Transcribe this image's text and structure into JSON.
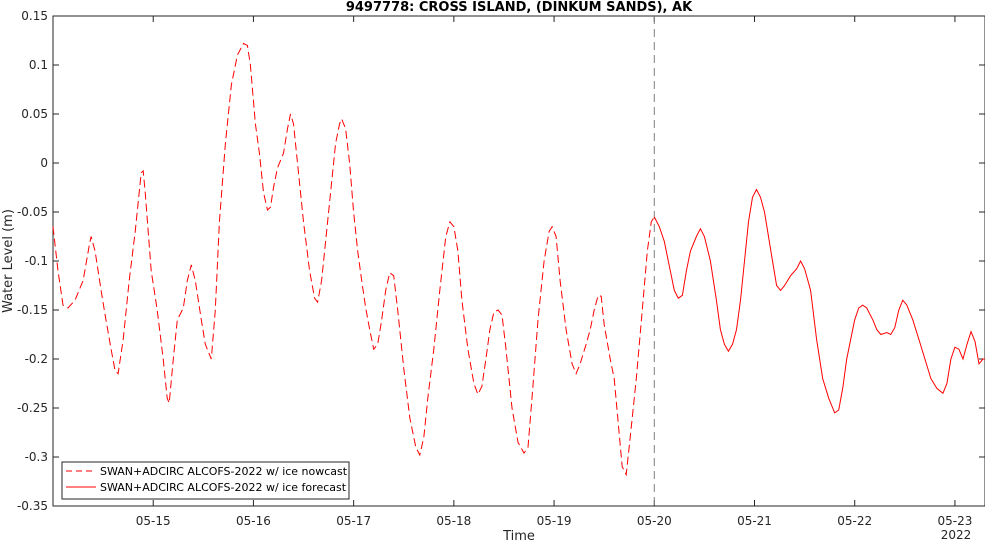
{
  "chart_data": {
    "type": "line",
    "title": "9497778: CROSS ISLAND, (DINKUM SANDS), AK",
    "xlabel": "Time",
    "ylabel": "Water Level (m)",
    "x_units": "days (May 2022)",
    "xlim": [
      14.0,
      23.3
    ],
    "ylim": [
      -0.35,
      0.15
    ],
    "yticks": [
      0.15,
      0.1,
      0.05,
      0,
      -0.05,
      -0.1,
      -0.15,
      -0.2,
      -0.25,
      -0.3,
      -0.35
    ],
    "ytick_labels": [
      "0.15",
      "0.1",
      "0.05",
      "0",
      "-0.05",
      "-0.1",
      "-0.15",
      "-0.2",
      "-0.25",
      "-0.3",
      "-0.35"
    ],
    "xticks": [
      15,
      16,
      17,
      18,
      19,
      20,
      21,
      22,
      23
    ],
    "xtick_labels": [
      "05-15",
      "05-16",
      "05-17",
      "05-18",
      "05-19",
      "05-20",
      "05-21",
      "05-22",
      "05-23"
    ],
    "x_year_label": "2022",
    "divider_x": 20.0,
    "grid": false,
    "legend_position": "bottom-left",
    "colors": {
      "series": "#ff0000",
      "divider": "#808080",
      "axis": "#262626"
    },
    "series": [
      {
        "name": "SWAN+ADCIRC ALCOFS-2022 w/ ice nowcast",
        "style": "dashed",
        "points": [
          [
            14.0,
            -0.065
          ],
          [
            14.05,
            -0.11
          ],
          [
            14.1,
            -0.145
          ],
          [
            14.15,
            -0.148
          ],
          [
            14.22,
            -0.14
          ],
          [
            14.3,
            -0.12
          ],
          [
            14.36,
            -0.085
          ],
          [
            14.38,
            -0.075
          ],
          [
            14.42,
            -0.09
          ],
          [
            14.48,
            -0.13
          ],
          [
            14.52,
            -0.155
          ],
          [
            14.58,
            -0.19
          ],
          [
            14.62,
            -0.212
          ],
          [
            14.65,
            -0.215
          ],
          [
            14.7,
            -0.18
          ],
          [
            14.76,
            -0.12
          ],
          [
            14.82,
            -0.07
          ],
          [
            14.86,
            -0.03
          ],
          [
            14.88,
            -0.01
          ],
          [
            14.9,
            -0.008
          ],
          [
            14.92,
            -0.03
          ],
          [
            14.98,
            -0.11
          ],
          [
            15.04,
            -0.15
          ],
          [
            15.1,
            -0.2
          ],
          [
            15.14,
            -0.24
          ],
          [
            15.16,
            -0.245
          ],
          [
            15.2,
            -0.2
          ],
          [
            15.24,
            -0.16
          ],
          [
            15.3,
            -0.148
          ],
          [
            15.34,
            -0.12
          ],
          [
            15.38,
            -0.104
          ],
          [
            15.42,
            -0.12
          ],
          [
            15.48,
            -0.16
          ],
          [
            15.52,
            -0.185
          ],
          [
            15.56,
            -0.195
          ],
          [
            15.58,
            -0.2
          ],
          [
            15.62,
            -0.15
          ],
          [
            15.66,
            -0.06
          ],
          [
            15.72,
            0.02
          ],
          [
            15.78,
            0.08
          ],
          [
            15.84,
            0.11
          ],
          [
            15.9,
            0.122
          ],
          [
            15.94,
            0.12
          ],
          [
            15.97,
            0.1
          ],
          [
            16.02,
            0.04
          ],
          [
            16.06,
            0.01
          ],
          [
            16.1,
            -0.03
          ],
          [
            16.14,
            -0.048
          ],
          [
            16.17,
            -0.045
          ],
          [
            16.2,
            -0.025
          ],
          [
            16.24,
            -0.005
          ],
          [
            16.3,
            0.01
          ],
          [
            16.34,
            0.035
          ],
          [
            16.37,
            0.05
          ],
          [
            16.4,
            0.04
          ],
          [
            16.44,
            0.0
          ],
          [
            16.5,
            -0.06
          ],
          [
            16.56,
            -0.11
          ],
          [
            16.61,
            -0.138
          ],
          [
            16.64,
            -0.142
          ],
          [
            16.68,
            -0.12
          ],
          [
            16.72,
            -0.08
          ],
          [
            16.78,
            -0.02
          ],
          [
            16.82,
            0.02
          ],
          [
            16.86,
            0.04
          ],
          [
            16.88,
            0.045
          ],
          [
            16.92,
            0.035
          ],
          [
            16.96,
            0.0
          ],
          [
            17.0,
            -0.05
          ],
          [
            17.04,
            -0.09
          ],
          [
            17.08,
            -0.12
          ],
          [
            17.12,
            -0.148
          ],
          [
            17.16,
            -0.17
          ],
          [
            17.2,
            -0.19
          ],
          [
            17.24,
            -0.185
          ],
          [
            17.28,
            -0.16
          ],
          [
            17.32,
            -0.13
          ],
          [
            17.36,
            -0.112
          ],
          [
            17.4,
            -0.115
          ],
          [
            17.44,
            -0.15
          ],
          [
            17.5,
            -0.21
          ],
          [
            17.56,
            -0.26
          ],
          [
            17.62,
            -0.29
          ],
          [
            17.66,
            -0.298
          ],
          [
            17.7,
            -0.28
          ],
          [
            17.74,
            -0.24
          ],
          [
            17.8,
            -0.19
          ],
          [
            17.86,
            -0.13
          ],
          [
            17.92,
            -0.075
          ],
          [
            17.96,
            -0.06
          ],
          [
            18.0,
            -0.065
          ],
          [
            18.04,
            -0.09
          ],
          [
            18.08,
            -0.14
          ],
          [
            18.14,
            -0.19
          ],
          [
            18.2,
            -0.225
          ],
          [
            18.24,
            -0.236
          ],
          [
            18.28,
            -0.228
          ],
          [
            18.32,
            -0.2
          ],
          [
            18.36,
            -0.17
          ],
          [
            18.4,
            -0.152
          ],
          [
            18.44,
            -0.15
          ],
          [
            18.48,
            -0.155
          ],
          [
            18.52,
            -0.19
          ],
          [
            18.58,
            -0.25
          ],
          [
            18.64,
            -0.285
          ],
          [
            18.7,
            -0.296
          ],
          [
            18.74,
            -0.29
          ],
          [
            18.78,
            -0.24
          ],
          [
            18.84,
            -0.16
          ],
          [
            18.9,
            -0.1
          ],
          [
            18.95,
            -0.07
          ],
          [
            18.98,
            -0.065
          ],
          [
            19.02,
            -0.075
          ],
          [
            19.06,
            -0.12
          ],
          [
            19.12,
            -0.17
          ],
          [
            19.18,
            -0.205
          ],
          [
            19.22,
            -0.215
          ],
          [
            19.26,
            -0.205
          ],
          [
            19.32,
            -0.185
          ],
          [
            19.36,
            -0.17
          ],
          [
            19.4,
            -0.15
          ],
          [
            19.44,
            -0.135
          ],
          [
            19.47,
            -0.136
          ],
          [
            19.5,
            -0.165
          ],
          [
            19.56,
            -0.2
          ],
          [
            19.6,
            -0.22
          ],
          [
            19.64,
            -0.265
          ],
          [
            19.68,
            -0.31
          ],
          [
            19.72,
            -0.318
          ],
          [
            19.76,
            -0.28
          ],
          [
            19.82,
            -0.22
          ],
          [
            19.88,
            -0.15
          ],
          [
            19.93,
            -0.09
          ],
          [
            19.97,
            -0.06
          ],
          [
            20.0,
            -0.055
          ]
        ]
      },
      {
        "name": "SWAN+ADCIRC ALCOFS-2022 w/ ice forecast",
        "style": "solid",
        "points": [
          [
            20.0,
            -0.055
          ],
          [
            20.05,
            -0.065
          ],
          [
            20.1,
            -0.08
          ],
          [
            20.16,
            -0.11
          ],
          [
            20.2,
            -0.13
          ],
          [
            20.24,
            -0.138
          ],
          [
            20.28,
            -0.135
          ],
          [
            20.32,
            -0.11
          ],
          [
            20.36,
            -0.09
          ],
          [
            20.42,
            -0.075
          ],
          [
            20.46,
            -0.067
          ],
          [
            20.5,
            -0.075
          ],
          [
            20.56,
            -0.1
          ],
          [
            20.62,
            -0.14
          ],
          [
            20.66,
            -0.17
          ],
          [
            20.7,
            -0.185
          ],
          [
            20.74,
            -0.192
          ],
          [
            20.78,
            -0.185
          ],
          [
            20.82,
            -0.17
          ],
          [
            20.86,
            -0.14
          ],
          [
            20.9,
            -0.1
          ],
          [
            20.94,
            -0.06
          ],
          [
            20.98,
            -0.035
          ],
          [
            21.02,
            -0.027
          ],
          [
            21.06,
            -0.035
          ],
          [
            21.1,
            -0.05
          ],
          [
            21.14,
            -0.075
          ],
          [
            21.18,
            -0.1
          ],
          [
            21.22,
            -0.125
          ],
          [
            21.26,
            -0.13
          ],
          [
            21.3,
            -0.125
          ],
          [
            21.36,
            -0.115
          ],
          [
            21.42,
            -0.108
          ],
          [
            21.46,
            -0.1
          ],
          [
            21.5,
            -0.108
          ],
          [
            21.56,
            -0.13
          ],
          [
            21.62,
            -0.18
          ],
          [
            21.68,
            -0.22
          ],
          [
            21.74,
            -0.24
          ],
          [
            21.8,
            -0.255
          ],
          [
            21.84,
            -0.252
          ],
          [
            21.88,
            -0.23
          ],
          [
            21.92,
            -0.2
          ],
          [
            21.96,
            -0.18
          ],
          [
            22.0,
            -0.16
          ],
          [
            22.04,
            -0.148
          ],
          [
            22.08,
            -0.145
          ],
          [
            22.12,
            -0.148
          ],
          [
            22.18,
            -0.16
          ],
          [
            22.22,
            -0.17
          ],
          [
            22.26,
            -0.175
          ],
          [
            22.32,
            -0.173
          ],
          [
            22.36,
            -0.175
          ],
          [
            22.4,
            -0.168
          ],
          [
            22.44,
            -0.15
          ],
          [
            22.48,
            -0.14
          ],
          [
            22.52,
            -0.145
          ],
          [
            22.58,
            -0.16
          ],
          [
            22.64,
            -0.18
          ],
          [
            22.7,
            -0.2
          ],
          [
            22.76,
            -0.22
          ],
          [
            22.82,
            -0.23
          ],
          [
            22.88,
            -0.235
          ],
          [
            22.92,
            -0.225
          ],
          [
            22.96,
            -0.2
          ],
          [
            23.0,
            -0.188
          ],
          [
            23.04,
            -0.19
          ],
          [
            23.08,
            -0.2
          ],
          [
            23.12,
            -0.185
          ],
          [
            23.16,
            -0.172
          ],
          [
            23.2,
            -0.182
          ],
          [
            23.24,
            -0.205
          ],
          [
            23.28,
            -0.2
          ],
          [
            23.3,
            -0.2
          ]
        ]
      }
    ]
  }
}
